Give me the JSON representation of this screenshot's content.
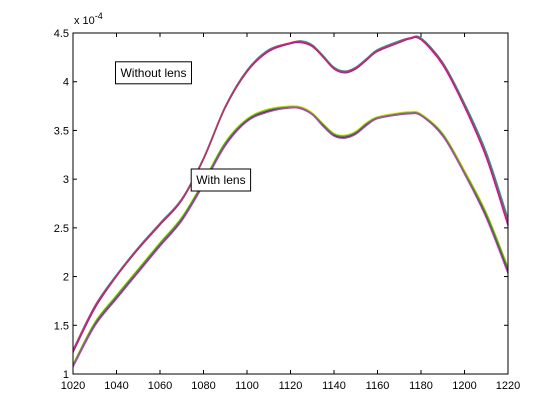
{
  "chart_data": {
    "type": "line",
    "title": "",
    "xlabel": "",
    "ylabel": "",
    "xlim": [
      1020,
      1220
    ],
    "ylim": [
      1,
      4.5
    ],
    "x_ticks": [
      1020,
      1040,
      1060,
      1080,
      1100,
      1120,
      1140,
      1160,
      1180,
      1200,
      1220
    ],
    "y_ticks": [
      1,
      1.5,
      2,
      2.5,
      3,
      3.5,
      4,
      4.5
    ],
    "y_multiplier": "x 10",
    "y_multiplier_exponent": "-4",
    "grid": false,
    "legend": "none",
    "annotations": [
      {
        "text": "Without lens",
        "x": 1057,
        "y": 4.05
      },
      {
        "text": "With lens",
        "x": 1088,
        "y": 2.95
      }
    ],
    "series": [
      {
        "group": "without-lens",
        "color": "#00a8a8",
        "x": [
          1020,
          1030,
          1040,
          1050,
          1060,
          1070,
          1080,
          1090,
          1100,
          1110,
          1120,
          1125,
          1130,
          1135,
          1140,
          1145,
          1150,
          1155,
          1160,
          1170,
          1175,
          1180,
          1190,
          1200,
          1210,
          1220
        ],
        "y": [
          1.25,
          1.7,
          2.02,
          2.3,
          2.55,
          2.8,
          3.22,
          3.75,
          4.12,
          4.33,
          4.4,
          4.42,
          4.38,
          4.27,
          4.15,
          4.11,
          4.15,
          4.24,
          4.33,
          4.42,
          4.45,
          4.45,
          4.2,
          3.78,
          3.28,
          2.6
        ]
      },
      {
        "group": "without-lens",
        "color": "#cc00cc",
        "x": [
          1020,
          1030,
          1040,
          1050,
          1060,
          1070,
          1080,
          1090,
          1100,
          1110,
          1120,
          1125,
          1130,
          1135,
          1140,
          1145,
          1150,
          1155,
          1160,
          1170,
          1175,
          1180,
          1190,
          1200,
          1210,
          1220
        ],
        "y": [
          1.22,
          1.67,
          2.0,
          2.28,
          2.53,
          2.78,
          3.2,
          3.73,
          4.1,
          4.31,
          4.39,
          4.4,
          4.36,
          4.25,
          4.13,
          4.09,
          4.13,
          4.22,
          4.31,
          4.4,
          4.44,
          4.43,
          4.17,
          3.74,
          3.22,
          2.52
        ]
      },
      {
        "group": "without-lens",
        "color": "#cc3333",
        "x": [
          1020,
          1030,
          1040,
          1050,
          1060,
          1070,
          1080,
          1090,
          1100,
          1110,
          1120,
          1125,
          1130,
          1135,
          1140,
          1145,
          1150,
          1155,
          1160,
          1170,
          1175,
          1180,
          1190,
          1200,
          1210,
          1220
        ],
        "y": [
          1.24,
          1.69,
          2.01,
          2.29,
          2.54,
          2.79,
          3.21,
          3.74,
          4.11,
          4.32,
          4.4,
          4.41,
          4.37,
          4.26,
          4.14,
          4.1,
          4.14,
          4.23,
          4.32,
          4.41,
          4.45,
          4.44,
          4.19,
          3.76,
          3.25,
          2.56
        ]
      },
      {
        "group": "with-lens",
        "color": "#333333",
        "x": [
          1020,
          1030,
          1040,
          1050,
          1060,
          1070,
          1080,
          1090,
          1100,
          1110,
          1120,
          1125,
          1130,
          1135,
          1140,
          1145,
          1150,
          1155,
          1160,
          1170,
          1175,
          1180,
          1190,
          1200,
          1210,
          1220
        ],
        "y": [
          1.08,
          1.5,
          1.78,
          2.05,
          2.32,
          2.58,
          2.95,
          3.35,
          3.6,
          3.7,
          3.74,
          3.73,
          3.67,
          3.55,
          3.45,
          3.43,
          3.47,
          3.56,
          3.63,
          3.67,
          3.68,
          3.66,
          3.45,
          3.06,
          2.62,
          2.05
        ]
      },
      {
        "group": "with-lens",
        "color": "#e0c000",
        "x": [
          1020,
          1030,
          1040,
          1050,
          1060,
          1070,
          1080,
          1090,
          1100,
          1110,
          1120,
          1125,
          1130,
          1135,
          1140,
          1145,
          1150,
          1155,
          1160,
          1170,
          1175,
          1180,
          1190,
          1200,
          1210,
          1220
        ],
        "y": [
          1.1,
          1.53,
          1.81,
          2.08,
          2.35,
          2.61,
          2.98,
          3.38,
          3.62,
          3.72,
          3.75,
          3.74,
          3.68,
          3.57,
          3.47,
          3.45,
          3.49,
          3.58,
          3.64,
          3.68,
          3.69,
          3.67,
          3.47,
          3.09,
          2.66,
          2.1
        ]
      },
      {
        "group": "with-lens",
        "color": "#22aa22",
        "x": [
          1020,
          1030,
          1040,
          1050,
          1060,
          1070,
          1080,
          1090,
          1100,
          1110,
          1120,
          1125,
          1130,
          1135,
          1140,
          1145,
          1150,
          1155,
          1160,
          1170,
          1175,
          1180,
          1190,
          1200,
          1210,
          1220
        ],
        "y": [
          1.09,
          1.52,
          1.8,
          2.07,
          2.34,
          2.6,
          2.97,
          3.37,
          3.61,
          3.71,
          3.74,
          3.73,
          3.67,
          3.56,
          3.46,
          3.44,
          3.48,
          3.57,
          3.63,
          3.67,
          3.68,
          3.66,
          3.46,
          3.07,
          2.64,
          2.08
        ]
      },
      {
        "group": "with-lens",
        "color": "#cc33cc",
        "x": [
          1020,
          1030,
          1040,
          1050,
          1060,
          1070,
          1080,
          1090,
          1100,
          1110,
          1120,
          1125,
          1130,
          1135,
          1140,
          1145,
          1150,
          1155,
          1160,
          1170,
          1175,
          1180,
          1190,
          1200,
          1210,
          1220
        ],
        "y": [
          1.07,
          1.49,
          1.77,
          2.04,
          2.31,
          2.57,
          2.94,
          3.34,
          3.59,
          3.69,
          3.73,
          3.72,
          3.66,
          3.54,
          3.44,
          3.42,
          3.46,
          3.55,
          3.62,
          3.66,
          3.67,
          3.65,
          3.44,
          3.05,
          2.6,
          2.03
        ]
      }
    ]
  }
}
